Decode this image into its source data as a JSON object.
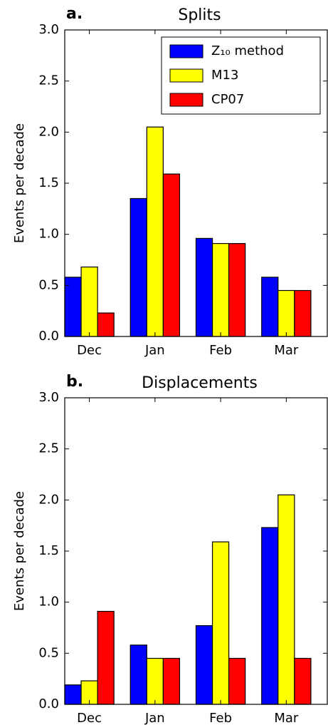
{
  "chart_data": [
    {
      "type": "bar",
      "panel_label": "a.",
      "title": "Splits",
      "y_label": "Events per decade",
      "categories": [
        "Dec",
        "Jan",
        "Feb",
        "Mar"
      ],
      "series": [
        {
          "name": "Z₁₀ method",
          "color": "#0000ff",
          "values": [
            0.58,
            1.35,
            0.96,
            0.58
          ]
        },
        {
          "name": "M13",
          "color": "#ffff00",
          "values": [
            0.68,
            2.05,
            0.91,
            0.45
          ]
        },
        {
          "name": "CP07",
          "color": "#ff0000",
          "values": [
            0.23,
            1.59,
            0.91,
            0.45
          ]
        }
      ],
      "ylim": [
        0,
        3
      ],
      "yticks": [
        {
          "value": 0,
          "label": "0.0"
        },
        0.5,
        {
          "value": 1,
          "label": "1.0"
        },
        1.5,
        {
          "value": 2,
          "label": "2.0"
        },
        2.5,
        {
          "value": 3,
          "label": "3.0"
        }
      ],
      "legend": "upper right"
    },
    {
      "type": "bar",
      "panel_label": "b.",
      "title": "Displacements",
      "y_label": "Events per decade",
      "categories": [
        "Dec",
        "Jan",
        "Feb",
        "Mar"
      ],
      "series": [
        {
          "color": "#0000ff",
          "values": [
            0.19,
            0.58,
            0.77,
            1.73
          ]
        },
        {
          "color": "#ffff00",
          "values": [
            0.23,
            0.45,
            1.59,
            2.05
          ]
        },
        {
          "color": "#ff0000",
          "values": [
            0.91,
            0.45,
            0.45,
            0.45
          ]
        }
      ],
      "ylim": [
        0,
        3
      ],
      "yticks": [
        {
          "value": 0,
          "label": "0.0"
        },
        0.5,
        {
          "value": 1,
          "label": "1.0"
        },
        1.5,
        {
          "value": 2,
          "label": "2.0"
        },
        2.5,
        {
          "value": 3,
          "label": "3.0"
        }
      ]
    }
  ]
}
